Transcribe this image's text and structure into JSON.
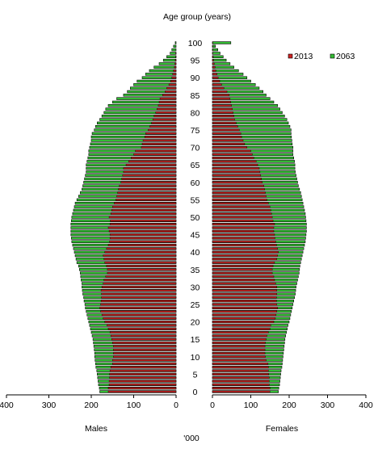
{
  "chart_data": {
    "type": "bar",
    "orientation": "horizontal",
    "layout": "population-pyramid",
    "title": "Age group (years)",
    "xlabel": "'000",
    "left_panel_label": "Males",
    "right_panel_label": "Females",
    "xlim": [
      0,
      400
    ],
    "x_ticks": [
      0,
      100,
      200,
      300,
      400
    ],
    "y_tick_labels": [
      "0",
      "5",
      "10",
      "15",
      "20",
      "25",
      "30",
      "35",
      "40",
      "45",
      "50",
      "55",
      "60",
      "65",
      "70",
      "75",
      "80",
      "85",
      "90",
      "95",
      "100"
    ],
    "grid": false,
    "legend_position": "top-right",
    "series": [
      {
        "name": "2013",
        "color": "#cc2222"
      },
      {
        "name": "2063",
        "color": "#33bb33"
      }
    ],
    "ages": [
      0,
      1,
      2,
      3,
      4,
      5,
      6,
      7,
      8,
      9,
      10,
      11,
      12,
      13,
      14,
      15,
      16,
      17,
      18,
      19,
      20,
      21,
      22,
      23,
      24,
      25,
      26,
      27,
      28,
      29,
      30,
      31,
      32,
      33,
      34,
      35,
      36,
      37,
      38,
      39,
      40,
      41,
      42,
      43,
      44,
      45,
      46,
      47,
      48,
      49,
      50,
      51,
      52,
      53,
      54,
      55,
      56,
      57,
      58,
      59,
      60,
      61,
      62,
      63,
      64,
      65,
      66,
      67,
      68,
      69,
      70,
      71,
      72,
      73,
      74,
      75,
      76,
      77,
      78,
      79,
      80,
      81,
      82,
      83,
      84,
      85,
      86,
      87,
      88,
      89,
      90,
      91,
      92,
      93,
      94,
      95,
      96,
      97,
      98,
      99,
      100
    ],
    "males_2013": [
      160,
      160,
      158,
      158,
      157,
      157,
      156,
      154,
      150,
      150,
      148,
      148,
      148,
      148,
      150,
      152,
      154,
      156,
      160,
      163,
      168,
      172,
      175,
      178,
      180,
      178,
      177,
      176,
      176,
      177,
      175,
      172,
      170,
      166,
      162,
      162,
      164,
      168,
      170,
      172,
      168,
      164,
      160,
      157,
      156,
      156,
      158,
      160,
      156,
      155,
      158,
      154,
      152,
      150,
      146,
      142,
      140,
      138,
      136,
      134,
      130,
      128,
      126,
      124,
      124,
      118,
      112,
      106,
      100,
      96,
      82,
      80,
      78,
      74,
      72,
      66,
      62,
      58,
      55,
      52,
      48,
      45,
      42,
      40,
      38,
      32,
      26,
      22,
      17,
      13,
      10,
      8,
      6,
      4,
      3,
      2,
      1,
      1,
      0,
      0,
      0
    ],
    "males_2063": [
      180,
      181,
      183,
      184,
      185,
      186,
      187,
      189,
      190,
      191,
      192,
      192,
      193,
      194,
      195,
      196,
      198,
      200,
      202,
      204,
      206,
      208,
      210,
      212,
      214,
      215,
      217,
      218,
      220,
      221,
      222,
      222,
      224,
      225,
      226,
      228,
      230,
      234,
      236,
      238,
      240,
      242,
      244,
      246,
      247,
      248,
      248,
      248,
      248,
      247,
      246,
      244,
      242,
      240,
      238,
      234,
      230,
      226,
      222,
      220,
      218,
      216,
      214,
      212,
      212,
      212,
      210,
      208,
      206,
      206,
      204,
      202,
      200,
      200,
      198,
      193,
      190,
      186,
      180,
      175,
      170,
      166,
      160,
      150,
      140,
      124,
      115,
      108,
      100,
      92,
      80,
      72,
      63,
      52,
      40,
      30,
      22,
      14,
      10,
      6,
      2
    ],
    "females_2013": [
      150,
      150,
      148,
      148,
      148,
      147,
      146,
      146,
      145,
      140,
      138,
      137,
      137,
      137,
      138,
      140,
      142,
      146,
      150,
      152,
      160,
      164,
      166,
      168,
      170,
      168,
      167,
      167,
      168,
      168,
      168,
      165,
      162,
      160,
      156,
      156,
      158,
      162,
      168,
      170,
      172,
      170,
      167,
      165,
      163,
      162,
      160,
      160,
      162,
      158,
      156,
      154,
      152,
      150,
      146,
      142,
      140,
      138,
      136,
      134,
      130,
      128,
      126,
      124,
      122,
      118,
      114,
      108,
      104,
      100,
      90,
      84,
      80,
      76,
      74,
      70,
      66,
      62,
      58,
      56,
      54,
      52,
      50,
      48,
      46,
      44,
      38,
      30,
      24,
      19,
      15,
      12,
      9,
      7,
      5,
      3,
      2,
      1,
      1,
      1,
      1
    ],
    "females_2063": [
      172,
      173,
      175,
      176,
      177,
      178,
      179,
      181,
      182,
      183,
      184,
      185,
      186,
      187,
      188,
      189,
      191,
      193,
      195,
      197,
      200,
      202,
      204,
      206,
      208,
      210,
      212,
      214,
      216,
      217,
      218,
      220,
      222,
      224,
      226,
      227,
      228,
      230,
      232,
      234,
      236,
      238,
      240,
      242,
      243,
      244,
      245,
      245,
      245,
      244,
      243,
      242,
      240,
      238,
      236,
      234,
      232,
      230,
      227,
      224,
      222,
      220,
      218,
      216,
      215,
      215,
      214,
      212,
      210,
      210,
      210,
      208,
      207,
      206,
      205,
      205,
      202,
      198,
      194,
      188,
      182,
      176,
      170,
      160,
      150,
      140,
      132,
      122,
      112,
      100,
      90,
      80,
      68,
      56,
      46,
      36,
      28,
      20,
      14,
      8,
      48
    ]
  }
}
